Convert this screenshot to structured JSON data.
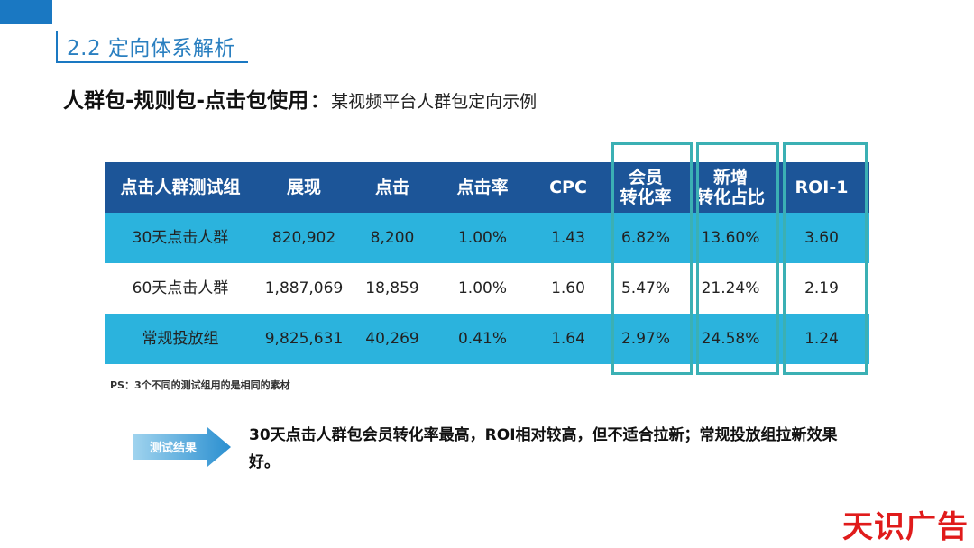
{
  "section_title": "2.2 定向体系解析",
  "subtitle": {
    "bold": "人群包-规则包-点击包使用",
    "separator": "：",
    "normal": "某视频平台人群包定向示例"
  },
  "table": {
    "headers": [
      "点击人群测试组",
      "展现",
      "点击",
      "点击率",
      "CPC",
      "会员\n转化率",
      "新增\n转化占比",
      "ROI-1"
    ],
    "rows": [
      [
        "30天点击人群",
        "820,902",
        "8,200",
        "1.00%",
        "1.43",
        "6.82%",
        "13.60%",
        "3.60"
      ],
      [
        "60天点击人群",
        "1,887,069",
        "18,859",
        "1.00%",
        "1.60",
        "5.47%",
        "21.24%",
        "2.19"
      ],
      [
        "常规投放组",
        "9,825,631",
        "40,269",
        "0.41%",
        "1.64",
        "2.97%",
        "24.58%",
        "1.24"
      ]
    ]
  },
  "note": "PS：3个不同的测试组用的是相同的素材",
  "result_label": "测试结果",
  "result_text": "30天点击人群包会员转化率最高，ROI相对较高，但不适合拉新；常规投放组拉新效果好。",
  "watermark": "天识广告",
  "colors": {
    "header_bg": "#1c5598",
    "cyan_row": "#2bb3dd",
    "highlight_border": "#3bb0b4",
    "accent_blue": "#1a78c2",
    "watermark_red": "#e01b1b"
  }
}
